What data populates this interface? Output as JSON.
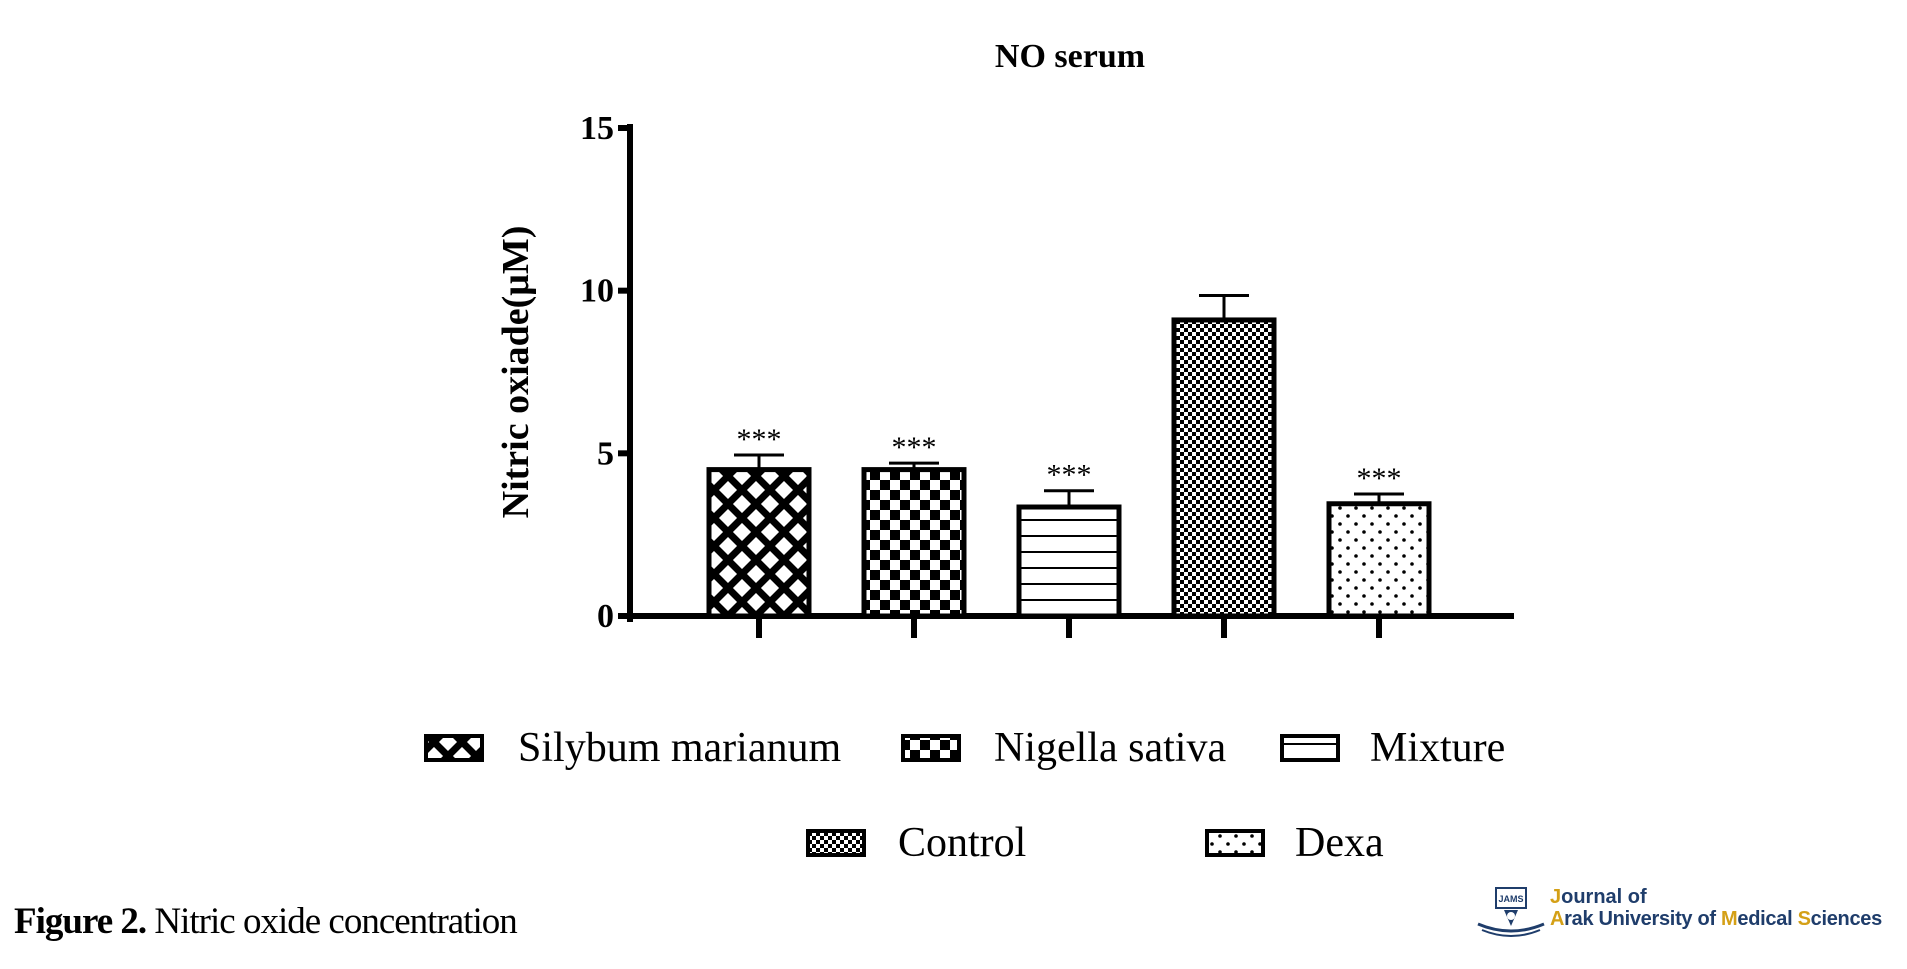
{
  "chart_data": {
    "type": "bar",
    "title": "NO serum",
    "ylabel": "Nitric oxiade(μM)",
    "xlabel": "",
    "ylim": [
      0,
      15
    ],
    "yticks": [
      0,
      5,
      10,
      15
    ],
    "categories": [
      "Silybum marianum",
      "Nigella sativa",
      "Mixture",
      "Control",
      "Dexa"
    ],
    "values": [
      4.5,
      4.5,
      3.35,
      9.1,
      3.45
    ],
    "errors": [
      0.45,
      0.2,
      0.5,
      0.75,
      0.3
    ],
    "annotations": [
      "***",
      "***",
      "***",
      "",
      "***"
    ],
    "patterns": [
      "crosshatch",
      "checker",
      "horizontal-lines",
      "fine-checker",
      "dots"
    ],
    "grid": false,
    "legend_position": "bottom"
  },
  "caption": {
    "label": "Figure 2.",
    "text": " Nitric oxide concentration"
  },
  "logo": {
    "line1_first": "J",
    "line1_rest": "ournal of",
    "line2_a": "A",
    "line2_b": "rak University of ",
    "line2_c": "M",
    "line2_d": "edical ",
    "line2_e": "S",
    "line2_f": "ciences",
    "emblem_text": "JAMS"
  },
  "colors": {
    "bar_stroke": "#000000",
    "logo_navy": "#1f3d6b",
    "logo_gold": "#d4a017"
  }
}
